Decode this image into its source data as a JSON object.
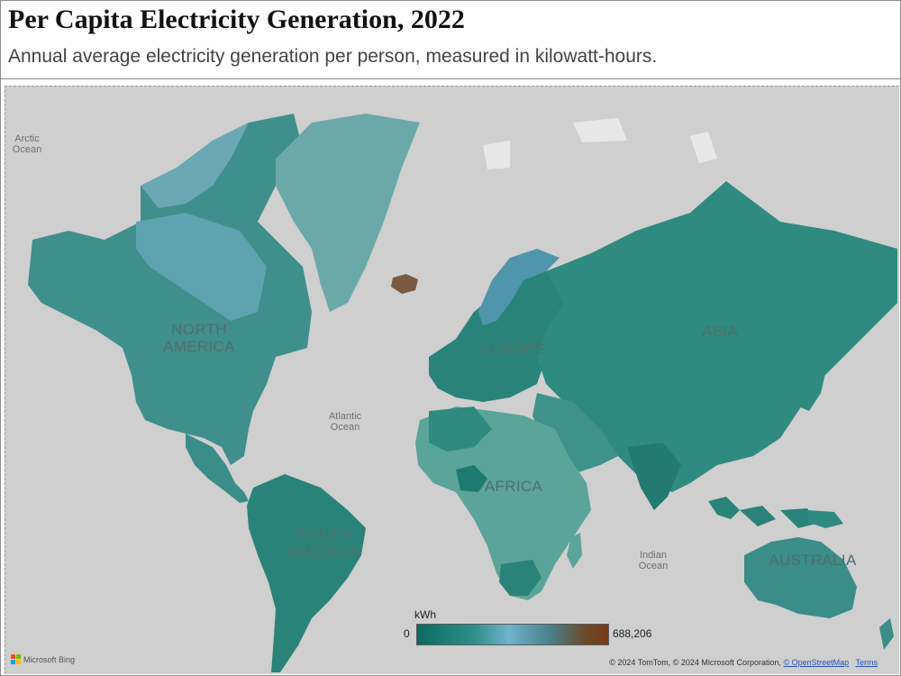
{
  "header": {
    "title": "Per Capita Electricity Generation, 2022",
    "subtitle": "Annual average electricity generation per person, measured in kilowatt-hours."
  },
  "map": {
    "ocean_labels": [
      {
        "name": "arctic",
        "text": "Arctic\nOcean"
      },
      {
        "name": "atlantic",
        "text": "Atlantic\nOcean"
      },
      {
        "name": "indian",
        "text": "Indian\nOcean"
      }
    ],
    "continent_labels": [
      {
        "name": "north-america",
        "text": "NORTH\nAMERICA"
      },
      {
        "name": "europe",
        "text": "EUROPE"
      },
      {
        "name": "asia",
        "text": "ASIA"
      },
      {
        "name": "africa",
        "text": "AFRICA"
      },
      {
        "name": "south-america",
        "text": "SOUTH\nAMERICA"
      },
      {
        "name": "australia",
        "text": "AUSTRALIA"
      }
    ],
    "colors": {
      "water": "#cfcfcf",
      "low": "#0b6b61",
      "mid": "#6fb3cc",
      "high": "#7a3a16",
      "iceland": "#7a5a40"
    }
  },
  "legend": {
    "title": "kWh",
    "min_label": "0",
    "max_label": "688,206"
  },
  "footer": {
    "brand": "Microsoft Bing",
    "copyright": "© 2024 TomTom, © 2024 Microsoft Corporation,",
    "osm_link": "© OpenStreetMap",
    "terms_link": "Terms"
  }
}
